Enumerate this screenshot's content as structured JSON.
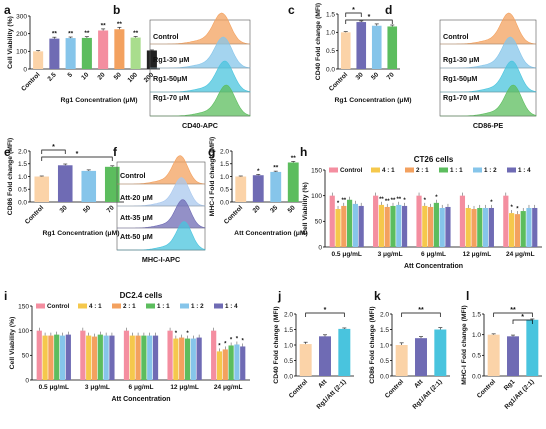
{
  "colors": {
    "peach": "#fbd3a8",
    "orange": "#f3a15f",
    "purple": "#6f6bb4",
    "cyan": "#49c4de",
    "blue": "#86c5ea",
    "green": "#5cbd5e",
    "lime": "#a9dd8d",
    "pink": "#f48ea0",
    "yellow": "#f5c84c",
    "black": "#222222",
    "lightblue": "#a9c8ee"
  },
  "chart_data": [
    {
      "panel": "a",
      "type": "bar",
      "ylabel": "Cell Viability (%)",
      "xlabel": "Rg1 Concentration (μM)",
      "categories": [
        "Control",
        "2.5",
        "5",
        "10",
        "20",
        "50",
        "100",
        "200"
      ],
      "values": [
        100,
        172,
        175,
        176,
        218,
        225,
        178,
        105
      ],
      "errors": [
        4,
        8,
        6,
        7,
        9,
        11,
        6,
        3
      ],
      "sig": [
        "",
        "**",
        "**",
        "**",
        "**",
        "**",
        "**",
        ""
      ],
      "colors": [
        "peach",
        "purple",
        "blue",
        "green",
        "pink",
        "orange",
        "lime",
        "black"
      ],
      "ylim": [
        0,
        300
      ],
      "yticks": [
        0,
        100,
        200,
        300
      ]
    },
    {
      "panel": "b",
      "type": "histogram",
      "xlabel": "CD40-APC",
      "labels": [
        "Control",
        "Rg1-30 μM",
        "Rg1-50μM",
        "Rg1-70 μM"
      ],
      "colors": [
        "orange",
        "blue",
        "cyan",
        "green"
      ]
    },
    {
      "panel": "c",
      "type": "bar",
      "ylabel": "CD40 Fold change (MFI)",
      "xlabel": "Rg1 Concentration (μM)",
      "categories": [
        "Control",
        "30",
        "50",
        "70"
      ],
      "values": [
        1.0,
        1.28,
        1.18,
        1.16
      ],
      "errors": [
        0.02,
        0.03,
        0.05,
        0.04
      ],
      "colors": [
        "peach",
        "purple",
        "blue",
        "green"
      ],
      "ylim": [
        0,
        1.5
      ],
      "yticks": [
        0.0,
        0.5,
        1.0,
        1.5
      ],
      "brackets": [
        [
          0,
          1,
          "*"
        ],
        [
          0,
          3,
          "*"
        ]
      ]
    },
    {
      "panel": "d",
      "type": "histogram",
      "xlabel": "CD86-PE",
      "labels": [
        "Control",
        "Rg1-30 μM",
        "Rg1-50μM",
        "Rg1-70 μM"
      ],
      "colors": [
        "orange",
        "blue",
        "cyan",
        "green"
      ]
    },
    {
      "panel": "e",
      "type": "bar",
      "ylabel": "CD86 Fold change (MFI)",
      "xlabel": "Rg1 Concentration (μM)",
      "categories": [
        "Control",
        "30",
        "50",
        "70"
      ],
      "values": [
        1.0,
        1.44,
        1.22,
        1.38
      ],
      "errors": [
        0.02,
        0.05,
        0.04,
        0.04
      ],
      "colors": [
        "peach",
        "purple",
        "blue",
        "green"
      ],
      "ylim": [
        0,
        2.0
      ],
      "yticks": [
        0.0,
        0.5,
        1.0,
        1.5,
        2.0
      ],
      "brackets": [
        [
          0,
          1,
          "*"
        ],
        [
          0,
          3,
          "*"
        ]
      ]
    },
    {
      "panel": "f",
      "type": "histogram",
      "xlabel": "MHC-I-APC",
      "labels": [
        "Control",
        "Att-20 μM",
        "Att-35 μM",
        "Att-50 μM"
      ],
      "colors": [
        "orange",
        "lightblue",
        "purple",
        "cyan"
      ]
    },
    {
      "panel": "g",
      "type": "bar",
      "ylabel": "MHC-I Fold change (MFI)",
      "xlabel": "Att Concentration (μM)",
      "categories": [
        "Control",
        "20",
        "35",
        "50"
      ],
      "values": [
        1.0,
        1.05,
        1.18,
        1.55
      ],
      "errors": [
        0.02,
        0.03,
        0.03,
        0.04
      ],
      "sig": [
        "",
        "*",
        "**",
        "**"
      ],
      "colors": [
        "peach",
        "purple",
        "blue",
        "green"
      ],
      "ylim": [
        0,
        2.0
      ],
      "yticks": [
        0.0,
        0.5,
        1.0,
        1.5,
        2.0
      ]
    },
    {
      "panel": "h",
      "type": "grouped-bar",
      "title": "CT26 cells",
      "ylabel": "Cell Viability (%)",
      "xlabel": "Att Concentration",
      "categories": [
        "0.5 μg/mL",
        "3 μg/mL",
        "6 μg/mL",
        "12 μg/mL",
        "24 μg/mL"
      ],
      "series": [
        {
          "name": "Control",
          "color": "pink",
          "values": [
            100,
            100,
            100,
            100,
            100
          ]
        },
        {
          "name": "4 : 1",
          "color": "yellow",
          "values": [
            74,
            82,
            80,
            76,
            66
          ]
        },
        {
          "name": "2 : 1",
          "color": "orange",
          "values": [
            80,
            78,
            78,
            74,
            64
          ]
        },
        {
          "name": "1 : 1",
          "color": "green",
          "values": [
            92,
            80,
            86,
            76,
            70
          ]
        },
        {
          "name": "1 : 2",
          "color": "blue",
          "values": [
            84,
            82,
            76,
            76,
            76
          ]
        },
        {
          "name": "1 : 4",
          "color": "purple",
          "values": [
            80,
            80,
            78,
            76,
            76
          ]
        }
      ],
      "sig": [
        [
          "",
          "*",
          "**",
          "",
          "",
          ""
        ],
        [
          "",
          "**",
          "**",
          "**",
          "**",
          "*"
        ],
        [
          "",
          "*",
          "",
          "*",
          "",
          ""
        ],
        [
          "",
          "",
          "",
          "",
          "",
          "*"
        ],
        [
          "",
          "*",
          "*",
          "",
          "",
          ""
        ]
      ],
      "ylim": [
        0,
        150
      ],
      "yticks": [
        0,
        50,
        100,
        150
      ]
    },
    {
      "panel": "i",
      "type": "grouped-bar",
      "title": "DC2.4 cells",
      "ylabel": "Cell Viability (%)",
      "xlabel": "Att Concentration",
      "categories": [
        "0.5 μg/mL",
        "3 μg/mL",
        "6 μg/mL",
        "12 μg/mL",
        "24 μg/mL"
      ],
      "series": [
        {
          "name": "Control",
          "color": "pink",
          "values": [
            100,
            100,
            100,
            100,
            100
          ]
        },
        {
          "name": "4 : 1",
          "color": "yellow",
          "values": [
            90,
            90,
            90,
            84,
            58
          ]
        },
        {
          "name": "2 : 1",
          "color": "orange",
          "values": [
            90,
            88,
            90,
            86,
            62
          ]
        },
        {
          "name": "1 : 1",
          "color": "green",
          "values": [
            92,
            92,
            90,
            84,
            70
          ]
        },
        {
          "name": "1 : 2",
          "color": "blue",
          "values": [
            90,
            90,
            90,
            84,
            72
          ]
        },
        {
          "name": "1 : 4",
          "color": "purple",
          "values": [
            92,
            90,
            90,
            86,
            68
          ]
        }
      ],
      "sig": [
        [
          "",
          "",
          "",
          "",
          "",
          ""
        ],
        [
          "",
          "",
          "",
          "",
          "",
          ""
        ],
        [
          "",
          "",
          "",
          "",
          "",
          ""
        ],
        [
          "",
          "*",
          "",
          "*",
          "",
          ""
        ],
        [
          "",
          "*",
          "*",
          "*",
          "*",
          "*"
        ]
      ],
      "ylim": [
        0,
        150
      ],
      "yticks": [
        0,
        50,
        100,
        150
      ]
    },
    {
      "panel": "j",
      "type": "bar",
      "ylabel": "CD40 Fold change (MFI)",
      "categories": [
        "Control",
        "Att",
        "Rg1/Att (2:1)"
      ],
      "values": [
        1.03,
        1.28,
        1.52
      ],
      "errors": [
        0.06,
        0.05,
        0.03
      ],
      "colors": [
        "peach",
        "purple",
        "cyan"
      ],
      "ylim": [
        0,
        2.0
      ],
      "yticks": [
        0.0,
        0.5,
        1.0,
        1.5,
        2.0
      ],
      "brackets": [
        [
          0,
          2,
          "*"
        ]
      ]
    },
    {
      "panel": "k",
      "type": "bar",
      "ylabel": "CD86 Fold change (MFI)",
      "categories": [
        "Control",
        "Att",
        "Rg1/Att (2:1)"
      ],
      "values": [
        1.0,
        1.22,
        1.5
      ],
      "errors": [
        0.07,
        0.05,
        0.06
      ],
      "colors": [
        "peach",
        "purple",
        "cyan"
      ],
      "ylim": [
        0,
        2.0
      ],
      "yticks": [
        0.0,
        0.5,
        1.0,
        1.5,
        2.0
      ],
      "brackets": [
        [
          0,
          2,
          "**"
        ]
      ]
    },
    {
      "panel": "l",
      "type": "bar",
      "ylabel": "MHC-I Fold change (MFI)",
      "categories": [
        "Control",
        "Rg1",
        "Rg1/Att (2:1)"
      ],
      "values": [
        1.0,
        0.96,
        1.36
      ],
      "errors": [
        0.02,
        0.03,
        0.02
      ],
      "colors": [
        "peach",
        "purple",
        "cyan"
      ],
      "ylim": [
        0,
        1.5
      ],
      "yticks": [
        0.0,
        0.5,
        1.0,
        1.5
      ],
      "brackets": [
        [
          0,
          2,
          "**"
        ],
        [
          1,
          2,
          "*"
        ]
      ]
    }
  ]
}
